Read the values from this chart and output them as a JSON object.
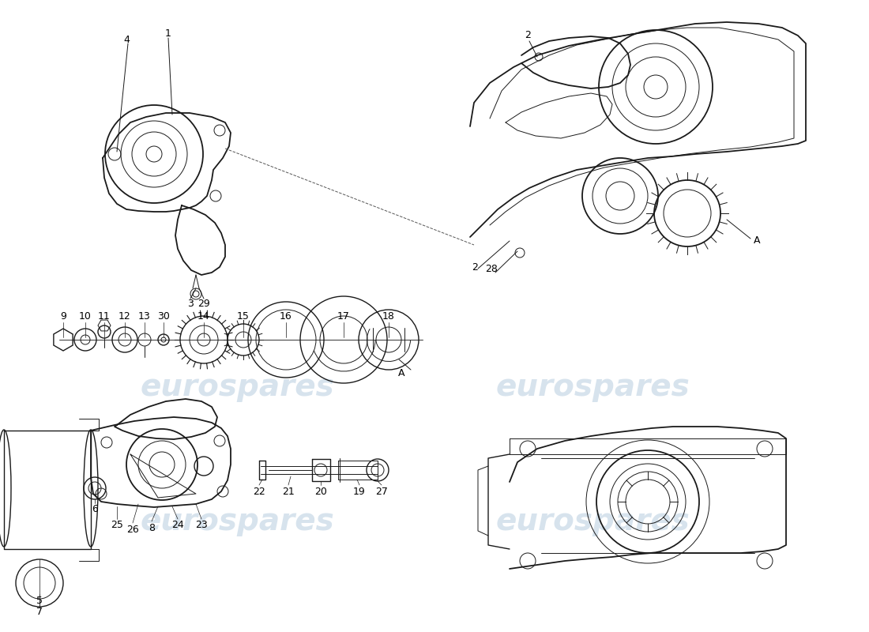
{
  "background_color": "#ffffff",
  "line_color": "#1a1a1a",
  "watermark_text": "eurospares",
  "watermark_color": "#b0c8dc",
  "watermark_alpha": 0.5,
  "fig_width": 11.0,
  "fig_height": 8.0,
  "dpi": 100
}
